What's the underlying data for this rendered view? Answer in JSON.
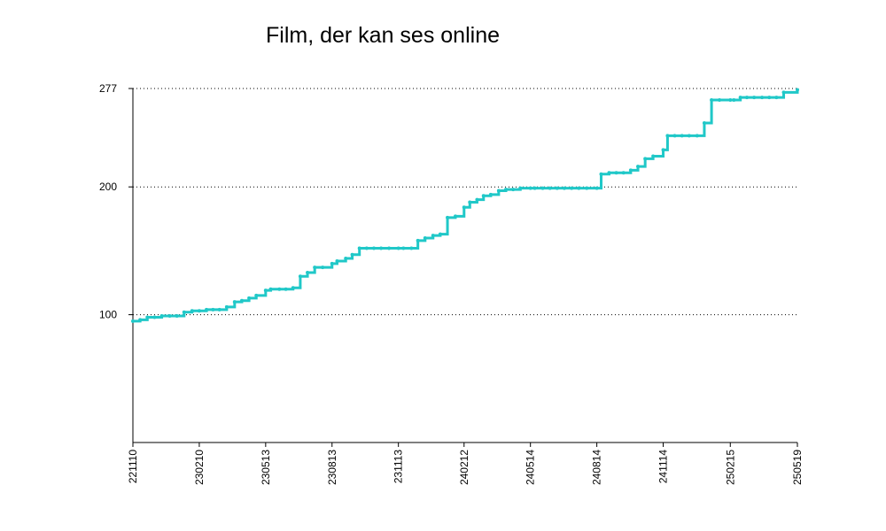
{
  "chart_data": {
    "type": "line",
    "title": "Film, der kan ses online",
    "xlabel": "",
    "ylabel": "",
    "x_tick_labels": [
      "221110",
      "230210",
      "230513",
      "230813",
      "231113",
      "240212",
      "240514",
      "240814",
      "241114",
      "250215",
      "250519"
    ],
    "y_ticks": [
      100,
      200,
      277
    ],
    "ylim": [
      0,
      277
    ],
    "grid": "horizontal dotted at y ticks",
    "line_color": "#20c8c8",
    "series": [
      {
        "name": "",
        "x": [
          "221110",
          "221120",
          "221130",
          "221210",
          "221220",
          "221231",
          "230110",
          "230120",
          "230131",
          "230210",
          "230220",
          "230301",
          "230310",
          "230320",
          "230331",
          "230410",
          "230420",
          "230430",
          "230513",
          "230520",
          "230601",
          "230610",
          "230620",
          "230630",
          "230710",
          "230720",
          "230731",
          "230813",
          "230820",
          "230901",
          "230910",
          "230920",
          "230930",
          "231010",
          "231020",
          "231031",
          "231113",
          "231120",
          "231201",
          "231210",
          "231220",
          "231231",
          "240110",
          "240120",
          "240131",
          "240212",
          "240220",
          "240301",
          "240310",
          "240320",
          "240331",
          "240410",
          "240420",
          "240430",
          "240514",
          "240520",
          "240531",
          "240610",
          "240620",
          "240630",
          "240710",
          "240720",
          "240731",
          "240814",
          "240820",
          "240831",
          "240910",
          "240920",
          "240930",
          "241010",
          "241020",
          "241031",
          "241114",
          "241120",
          "241130",
          "241210",
          "241220",
          "241231",
          "250110",
          "250120",
          "250131",
          "250215",
          "250220",
          "250301",
          "250310",
          "250320",
          "250331",
          "250410",
          "250420",
          "250430",
          "250519"
        ],
        "y": [
          95,
          96,
          98,
          98,
          99,
          99,
          99,
          102,
          103,
          103,
          104,
          104,
          104,
          106,
          110,
          111,
          113,
          115,
          119,
          120,
          120,
          120,
          121,
          130,
          133,
          137,
          137,
          140,
          142,
          144,
          147,
          152,
          152,
          152,
          152,
          152,
          152,
          152,
          152,
          158,
          160,
          162,
          163,
          176,
          177,
          184,
          188,
          190,
          193,
          194,
          197,
          198,
          198,
          199,
          199,
          199,
          199,
          199,
          199,
          199,
          199,
          199,
          199,
          199,
          210,
          211,
          211,
          211,
          213,
          216,
          222,
          224,
          229,
          240,
          240,
          240,
          240,
          240,
          250,
          268,
          268,
          268,
          268,
          270,
          270,
          270,
          270,
          270,
          270,
          274,
          276
        ]
      }
    ]
  }
}
